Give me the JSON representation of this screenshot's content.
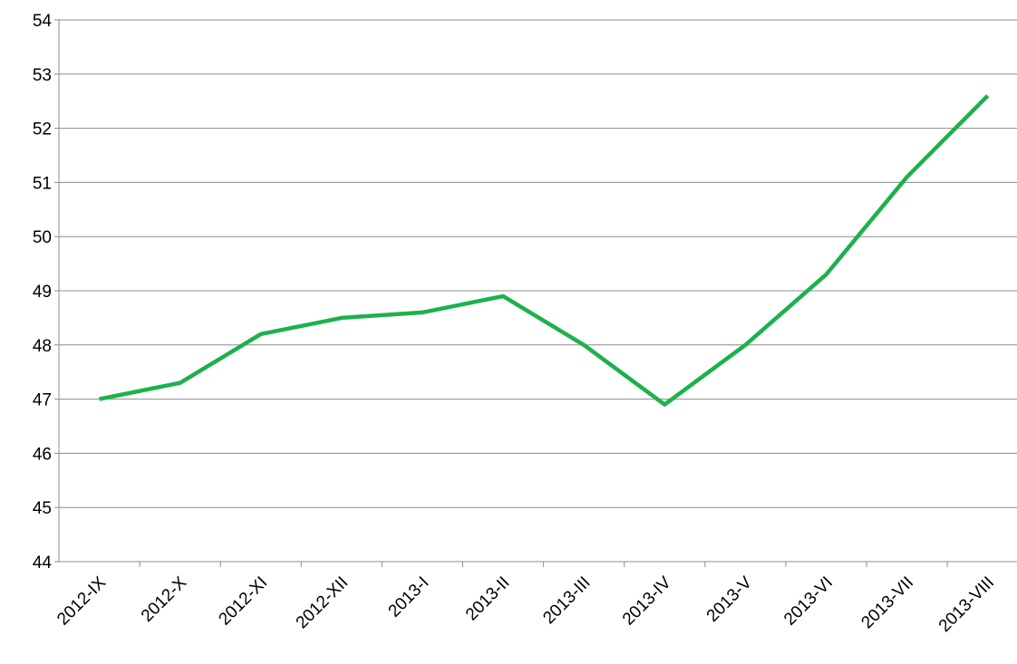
{
  "chart_data": {
    "type": "line",
    "categories": [
      "2012-IX",
      "2012-X",
      "2012-XI",
      "2012-XII",
      "2013-I",
      "2013-II",
      "2013-III",
      "2013-IV",
      "2013-V",
      "2013-VI",
      "2013-VII",
      "2013-VIII"
    ],
    "series": [
      {
        "color": "#1db14b",
        "values": [
          47,
          47.3,
          48.2,
          48.5,
          48.6,
          48.9,
          48.0,
          46.9,
          48.0,
          49.3,
          51.1,
          52.6
        ]
      }
    ],
    "ylim": [
      44,
      54
    ],
    "yticks": [
      44,
      45,
      46,
      47,
      48,
      49,
      50,
      51,
      52,
      53,
      54
    ],
    "grid": true
  }
}
